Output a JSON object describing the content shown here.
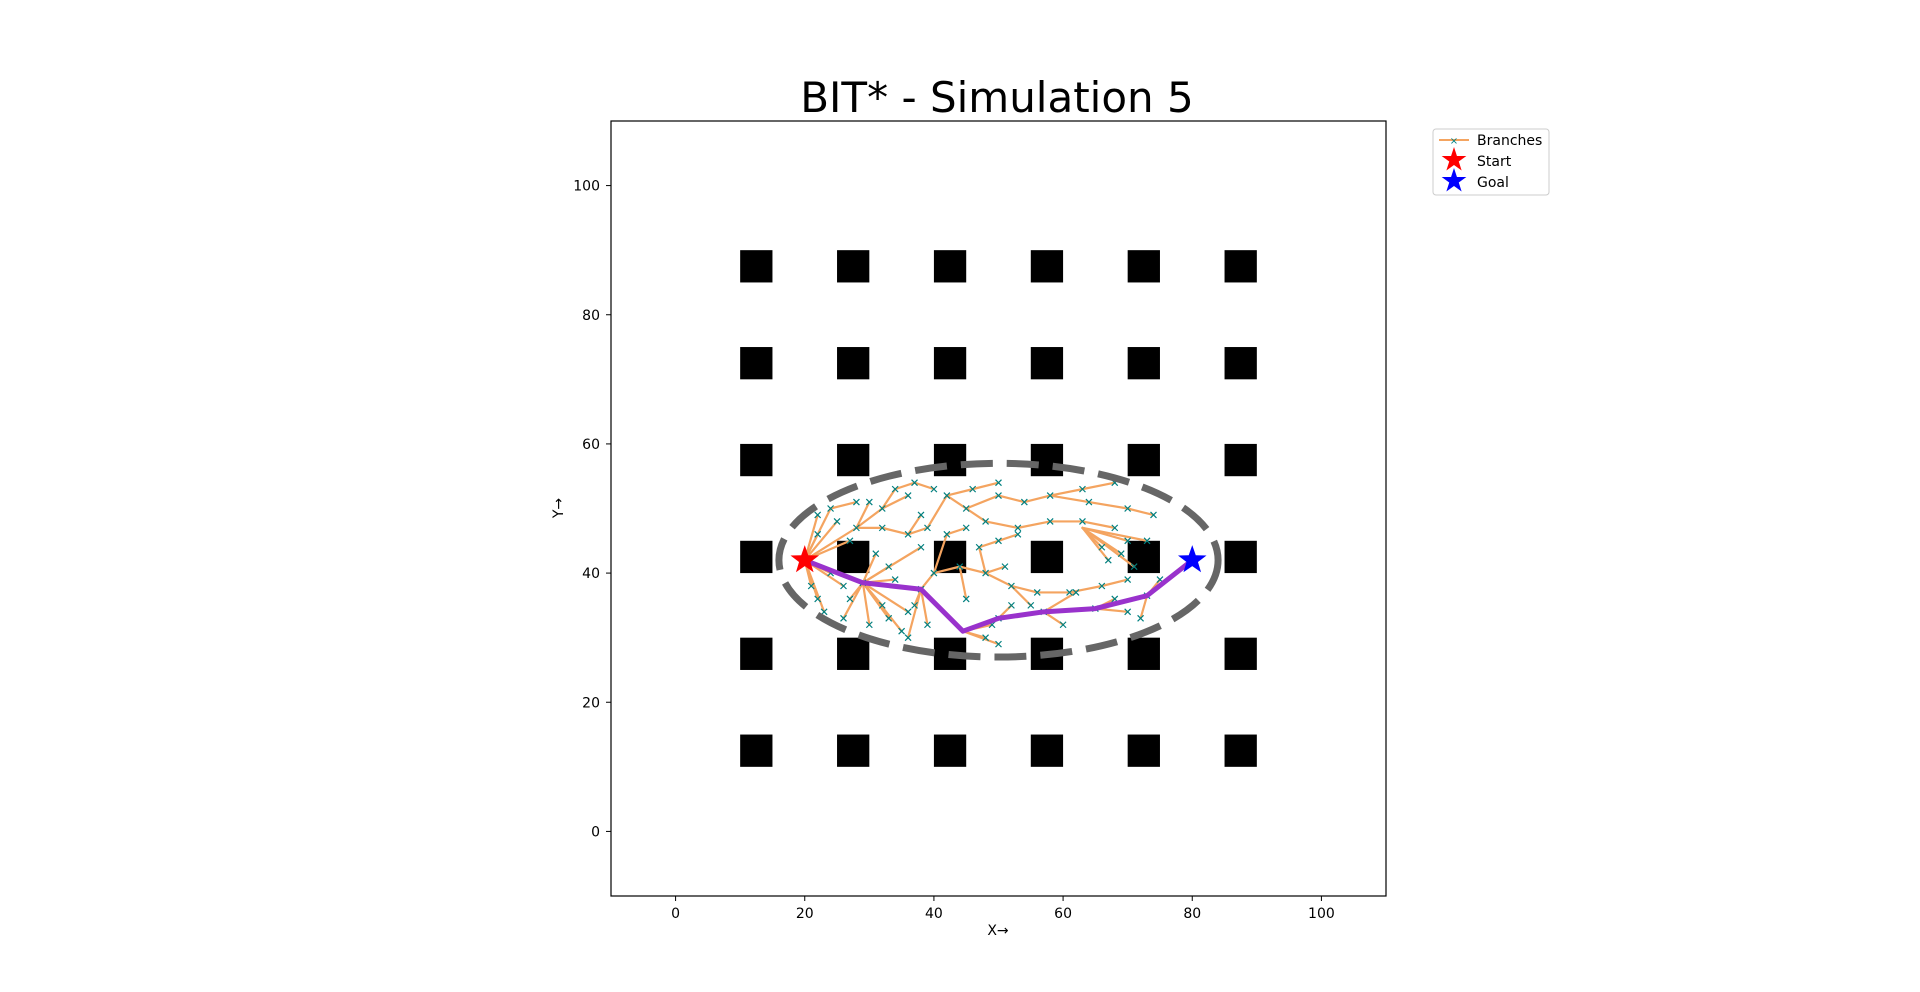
{
  "chart_data": {
    "type": "scatter",
    "title": "BIT* - Simulation 5",
    "xlabel": "X→",
    "ylabel": "Y→",
    "xlim": [
      -10,
      110
    ],
    "ylim": [
      -10,
      110
    ],
    "xticks": [
      0,
      20,
      40,
      60,
      80,
      100
    ],
    "yticks": [
      0,
      20,
      40,
      60,
      80,
      100
    ],
    "grid": false,
    "legend": {
      "location": "outside upper right",
      "entries": [
        "Branches",
        "Start",
        "Goal"
      ]
    },
    "colors": {
      "branches": "#f4a460",
      "samples": "#008080",
      "path": "#9932cc",
      "ellipse": "#666666",
      "obstacle": "#000000",
      "start": "#ff0000",
      "goal": "#0000ff"
    },
    "obstacles": {
      "size": 5,
      "centers_x": [
        12.5,
        27.5,
        42.5,
        57.5,
        72.5,
        87.5
      ],
      "centers_y": [
        12.5,
        27.5,
        42.5,
        57.5,
        72.5,
        87.5
      ]
    },
    "start": [
      20,
      42
    ],
    "goal": [
      80,
      42
    ],
    "ellipse": {
      "center": [
        50,
        42
      ],
      "rx": 34,
      "ry": 15
    },
    "path": [
      [
        20,
        42
      ],
      [
        29,
        38.5
      ],
      [
        38,
        37.5
      ],
      [
        44.5,
        31
      ],
      [
        50,
        33
      ],
      [
        57,
        34
      ],
      [
        65,
        34.5
      ],
      [
        73,
        36.5
      ],
      [
        80,
        42
      ]
    ],
    "branches": [
      [
        [
          20,
          42
        ],
        [
          22,
          49
        ]
      ],
      [
        [
          20,
          42
        ],
        [
          24,
          50
        ]
      ],
      [
        [
          20,
          42
        ],
        [
          25,
          48
        ]
      ],
      [
        [
          20,
          42
        ],
        [
          22,
          46
        ]
      ],
      [
        [
          20,
          42
        ],
        [
          21,
          38
        ]
      ],
      [
        [
          20,
          42
        ],
        [
          22,
          36
        ]
      ],
      [
        [
          20,
          42
        ],
        [
          23,
          34
        ]
      ],
      [
        [
          20,
          42
        ],
        [
          24,
          40
        ]
      ],
      [
        [
          20,
          42
        ],
        [
          26,
          38
        ]
      ],
      [
        [
          20,
          42
        ],
        [
          27,
          45
        ]
      ],
      [
        [
          20,
          42
        ],
        [
          28,
          47
        ]
      ],
      [
        [
          24,
          50
        ],
        [
          28,
          51
        ]
      ],
      [
        [
          28,
          47
        ],
        [
          30,
          51
        ]
      ],
      [
        [
          28,
          47
        ],
        [
          32,
          50
        ]
      ],
      [
        [
          28,
          47
        ],
        [
          32,
          47
        ]
      ],
      [
        [
          32,
          50
        ],
        [
          34,
          53
        ]
      ],
      [
        [
          32,
          50
        ],
        [
          36,
          52
        ]
      ],
      [
        [
          34,
          53
        ],
        [
          37,
          54
        ]
      ],
      [
        [
          37,
          54
        ],
        [
          40,
          53
        ]
      ],
      [
        [
          32,
          47
        ],
        [
          36,
          46
        ]
      ],
      [
        [
          36,
          46
        ],
        [
          38,
          49
        ]
      ],
      [
        [
          36,
          46
        ],
        [
          39,
          47
        ]
      ],
      [
        [
          39,
          47
        ],
        [
          42,
          52
        ]
      ],
      [
        [
          42,
          52
        ],
        [
          46,
          53
        ]
      ],
      [
        [
          46,
          53
        ],
        [
          50,
          54
        ]
      ],
      [
        [
          42,
          52
        ],
        [
          45,
          50
        ]
      ],
      [
        [
          45,
          50
        ],
        [
          50,
          52
        ]
      ],
      [
        [
          50,
          52
        ],
        [
          54,
          51
        ]
      ],
      [
        [
          54,
          51
        ],
        [
          58,
          52
        ]
      ],
      [
        [
          58,
          52
        ],
        [
          63,
          53
        ]
      ],
      [
        [
          63,
          53
        ],
        [
          68,
          54
        ]
      ],
      [
        [
          58,
          52
        ],
        [
          64,
          51
        ]
      ],
      [
        [
          64,
          51
        ],
        [
          70,
          50
        ]
      ],
      [
        [
          70,
          50
        ],
        [
          74,
          49
        ]
      ],
      [
        [
          45,
          50
        ],
        [
          48,
          48
        ]
      ],
      [
        [
          48,
          48
        ],
        [
          53,
          47
        ]
      ],
      [
        [
          53,
          47
        ],
        [
          58,
          48
        ]
      ],
      [
        [
          58,
          48
        ],
        [
          63,
          48
        ]
      ],
      [
        [
          63,
          48
        ],
        [
          68,
          47
        ]
      ],
      [
        [
          63,
          47
        ],
        [
          66,
          44
        ]
      ],
      [
        [
          63,
          47
        ],
        [
          67,
          42
        ]
      ],
      [
        [
          63,
          47
        ],
        [
          70,
          45
        ]
      ],
      [
        [
          63,
          47
        ],
        [
          69,
          43
        ]
      ],
      [
        [
          63,
          47
        ],
        [
          71,
          41
        ]
      ],
      [
        [
          63,
          47
        ],
        [
          73,
          45
        ]
      ],
      [
        [
          29,
          38.5
        ],
        [
          31,
          43
        ]
      ],
      [
        [
          29,
          38.5
        ],
        [
          33,
          41
        ]
      ],
      [
        [
          29,
          38.5
        ],
        [
          32,
          35
        ]
      ],
      [
        [
          29,
          38.5
        ],
        [
          30,
          32
        ]
      ],
      [
        [
          29,
          38.5
        ],
        [
          33,
          33
        ]
      ],
      [
        [
          29,
          38.5
        ],
        [
          35,
          31
        ]
      ],
      [
        [
          29,
          38.5
        ],
        [
          36,
          34
        ]
      ],
      [
        [
          29,
          38.5
        ],
        [
          27,
          36
        ]
      ],
      [
        [
          29,
          38.5
        ],
        [
          26,
          33
        ]
      ],
      [
        [
          29,
          38.5
        ],
        [
          34,
          39
        ]
      ],
      [
        [
          29,
          38.5
        ],
        [
          38,
          44
        ]
      ],
      [
        [
          38,
          37.5
        ],
        [
          40,
          40
        ]
      ],
      [
        [
          38,
          37.5
        ],
        [
          37,
          35
        ]
      ],
      [
        [
          38,
          37.5
        ],
        [
          39,
          32
        ]
      ],
      [
        [
          38,
          37.5
        ],
        [
          36,
          30
        ]
      ],
      [
        [
          40,
          40
        ],
        [
          42,
          46
        ]
      ],
      [
        [
          42,
          46
        ],
        [
          45,
          47
        ]
      ],
      [
        [
          40,
          40
        ],
        [
          44,
          41
        ]
      ],
      [
        [
          44,
          41
        ],
        [
          48,
          40
        ]
      ],
      [
        [
          48,
          40
        ],
        [
          51,
          41
        ]
      ],
      [
        [
          48,
          40
        ],
        [
          47,
          44
        ]
      ],
      [
        [
          47,
          44
        ],
        [
          50,
          45
        ]
      ],
      [
        [
          50,
          45
        ],
        [
          53,
          46
        ]
      ],
      [
        [
          48,
          40
        ],
        [
          52,
          38
        ]
      ],
      [
        [
          52,
          38
        ],
        [
          56,
          37
        ]
      ],
      [
        [
          56,
          37
        ],
        [
          61,
          37
        ]
      ],
      [
        [
          61,
          37
        ],
        [
          66,
          38
        ]
      ],
      [
        [
          66,
          38
        ],
        [
          70,
          39
        ]
      ],
      [
        [
          52,
          38
        ],
        [
          55,
          35
        ]
      ],
      [
        [
          44,
          41
        ],
        [
          45,
          36
        ]
      ],
      [
        [
          44.5,
          31
        ],
        [
          48,
          30
        ]
      ],
      [
        [
          44.5,
          31
        ],
        [
          50,
          29
        ]
      ],
      [
        [
          44.5,
          31
        ],
        [
          49,
          32
        ]
      ],
      [
        [
          50,
          33
        ],
        [
          52,
          35
        ]
      ],
      [
        [
          57,
          34
        ],
        [
          60,
          32
        ]
      ],
      [
        [
          57,
          34
        ],
        [
          62,
          37
        ]
      ],
      [
        [
          65,
          34.5
        ],
        [
          68,
          36
        ]
      ],
      [
        [
          65,
          34.5
        ],
        [
          70,
          34
        ]
      ],
      [
        [
          73,
          36.5
        ],
        [
          75,
          39
        ]
      ],
      [
        [
          73,
          36.5
        ],
        [
          72,
          33
        ]
      ]
    ],
    "samples": [
      [
        22,
        49
      ],
      [
        24,
        50
      ],
      [
        25,
        48
      ],
      [
        22,
        46
      ],
      [
        21,
        38
      ],
      [
        22,
        36
      ],
      [
        23,
        34
      ],
      [
        24,
        40
      ],
      [
        26,
        38
      ],
      [
        27,
        45
      ],
      [
        28,
        47
      ],
      [
        28,
        51
      ],
      [
        30,
        51
      ],
      [
        32,
        50
      ],
      [
        32,
        47
      ],
      [
        34,
        53
      ],
      [
        36,
        52
      ],
      [
        37,
        54
      ],
      [
        40,
        53
      ],
      [
        36,
        46
      ],
      [
        38,
        49
      ],
      [
        39,
        47
      ],
      [
        42,
        52
      ],
      [
        46,
        53
      ],
      [
        50,
        54
      ],
      [
        45,
        50
      ],
      [
        50,
        52
      ],
      [
        54,
        51
      ],
      [
        58,
        52
      ],
      [
        63,
        53
      ],
      [
        68,
        54
      ],
      [
        64,
        51
      ],
      [
        70,
        50
      ],
      [
        74,
        49
      ],
      [
        48,
        48
      ],
      [
        53,
        47
      ],
      [
        58,
        48
      ],
      [
        63,
        48
      ],
      [
        68,
        47
      ],
      [
        66,
        44
      ],
      [
        67,
        42
      ],
      [
        70,
        45
      ],
      [
        69,
        43
      ],
      [
        71,
        41
      ],
      [
        73,
        45
      ],
      [
        31,
        43
      ],
      [
        33,
        41
      ],
      [
        32,
        35
      ],
      [
        30,
        32
      ],
      [
        33,
        33
      ],
      [
        35,
        31
      ],
      [
        36,
        34
      ],
      [
        27,
        36
      ],
      [
        26,
        33
      ],
      [
        34,
        39
      ],
      [
        38,
        44
      ],
      [
        40,
        40
      ],
      [
        37,
        35
      ],
      [
        39,
        32
      ],
      [
        36,
        30
      ],
      [
        42,
        46
      ],
      [
        45,
        47
      ],
      [
        44,
        41
      ],
      [
        48,
        40
      ],
      [
        51,
        41
      ],
      [
        47,
        44
      ],
      [
        50,
        45
      ],
      [
        53,
        46
      ],
      [
        52,
        38
      ],
      [
        56,
        37
      ],
      [
        61,
        37
      ],
      [
        66,
        38
      ],
      [
        70,
        39
      ],
      [
        55,
        35
      ],
      [
        45,
        36
      ],
      [
        48,
        30
      ],
      [
        50,
        29
      ],
      [
        49,
        32
      ],
      [
        52,
        35
      ],
      [
        60,
        32
      ],
      [
        62,
        37
      ],
      [
        68,
        36
      ],
      [
        70,
        34
      ],
      [
        75,
        39
      ],
      [
        72,
        33
      ],
      [
        29,
        38.5
      ],
      [
        38,
        37.5
      ],
      [
        50,
        33
      ],
      [
        57,
        34
      ],
      [
        65,
        34.5
      ],
      [
        73,
        36.5
      ]
    ]
  }
}
